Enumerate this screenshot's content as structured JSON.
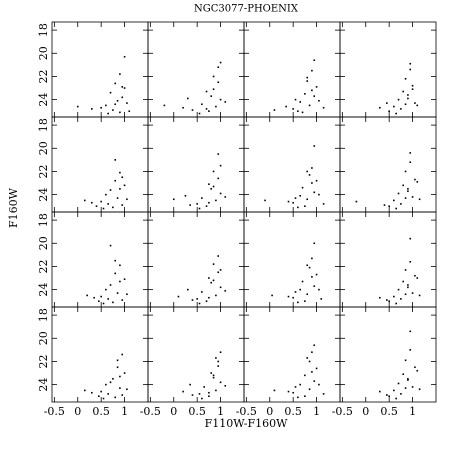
{
  "chart_data": {
    "type": "scatter",
    "title": "NGC3077-PHOENIX",
    "x_label": "F110W-F160W",
    "y_label": "F160W",
    "xlim": [
      -0.55,
      1.5
    ],
    "ylim": [
      25.5,
      17.3
    ],
    "xticks": [
      -0.5,
      0,
      0.5,
      1
    ],
    "yticks": [
      18,
      20,
      22,
      24
    ],
    "color": "#000000",
    "panels": [
      {
        "x": [
          0.9,
          0.8,
          1.0,
          0.7,
          0.95,
          0.85,
          0.6,
          1.05,
          0.75,
          0.9,
          0.5,
          1.1,
          0.3,
          0.8,
          0.0,
          0.95,
          0.65,
          1.0
        ],
        "y": [
          21.8,
          22.6,
          23.0,
          23.4,
          23.8,
          24.1,
          24.5,
          24.3,
          24.9,
          25.1,
          24.7,
          25.0,
          24.8,
          24.4,
          24.6,
          22.9,
          25.2,
          20.3
        ]
      },
      {
        "x": [
          0.85,
          0.95,
          0.7,
          0.8,
          1.0,
          0.6,
          0.9,
          0.4,
          0.75,
          1.1,
          0.2,
          0.85,
          0.55,
          -0.2,
          0.95,
          0.7,
          0.3,
          1.0
        ],
        "y": [
          22.0,
          22.5,
          23.3,
          23.7,
          24.0,
          24.4,
          24.6,
          24.9,
          25.0,
          24.2,
          24.7,
          23.1,
          25.2,
          24.5,
          21.2,
          24.8,
          23.9,
          20.8
        ]
      },
      {
        "x": [
          0.9,
          0.8,
          1.0,
          0.75,
          0.95,
          0.65,
          0.85,
          0.5,
          1.05,
          0.7,
          0.35,
          0.9,
          0.6,
          1.15,
          0.8,
          0.1,
          0.95,
          0.55
        ],
        "y": [
          21.5,
          22.4,
          22.9,
          23.5,
          23.7,
          24.2,
          24.5,
          24.8,
          24.1,
          25.1,
          24.6,
          23.2,
          25.0,
          24.7,
          22.1,
          24.9,
          20.6,
          24.0
        ]
      },
      {
        "x": [
          0.95,
          0.85,
          1.0,
          0.8,
          0.9,
          0.7,
          1.05,
          0.6,
          0.75,
          1.1,
          0.5,
          0.9,
          0.65,
          0.3,
          0.95,
          0.85,
          1.0,
          0.45
        ],
        "y": [
          21.4,
          22.2,
          22.8,
          23.3,
          23.6,
          24.0,
          24.3,
          24.6,
          24.8,
          24.5,
          25.0,
          23.9,
          25.2,
          24.7,
          20.9,
          24.4,
          23.1,
          24.3
        ]
      },
      {
        "x": [
          0.9,
          0.8,
          1.0,
          0.7,
          0.6,
          0.85,
          0.5,
          0.95,
          0.3,
          0.75,
          1.05,
          0.4,
          0.9,
          0.65,
          0.15,
          0.8,
          0.55,
          0.95
        ],
        "y": [
          22.1,
          22.8,
          23.2,
          23.6,
          24.0,
          24.3,
          24.6,
          24.9,
          24.7,
          25.1,
          24.4,
          25.0,
          23.5,
          24.8,
          24.5,
          21.0,
          25.2,
          22.5
        ]
      },
      {
        "x": [
          0.85,
          0.95,
          0.75,
          0.8,
          1.0,
          0.6,
          0.9,
          0.5,
          0.7,
          1.1,
          0.35,
          0.85,
          0.55,
          0.0,
          0.95,
          0.75,
          0.25,
          1.0
        ],
        "y": [
          22.0,
          22.6,
          23.1,
          23.5,
          23.9,
          24.3,
          24.5,
          24.8,
          25.0,
          24.2,
          24.9,
          23.3,
          25.2,
          24.4,
          20.5,
          24.7,
          24.1,
          21.5
        ]
      },
      {
        "x": [
          0.9,
          0.85,
          1.0,
          0.7,
          0.95,
          0.65,
          0.8,
          0.5,
          1.05,
          0.75,
          0.4,
          0.9,
          0.6,
          1.15,
          0.8,
          -0.1,
          0.95,
          0.55
        ],
        "y": [
          21.7,
          22.3,
          22.8,
          23.4,
          23.8,
          24.1,
          24.4,
          24.7,
          24.0,
          25.0,
          24.6,
          23.0,
          25.1,
          24.8,
          22.0,
          24.5,
          19.8,
          24.3
        ]
      },
      {
        "x": [
          0.95,
          0.85,
          1.05,
          0.8,
          0.9,
          0.7,
          1.0,
          0.6,
          0.75,
          1.15,
          0.5,
          0.9,
          0.65,
          -0.2,
          0.95,
          0.85,
          1.1,
          0.4
        ],
        "y": [
          21.2,
          22.0,
          22.7,
          23.2,
          23.5,
          23.9,
          24.2,
          24.5,
          24.8,
          24.4,
          25.0,
          23.7,
          25.2,
          24.6,
          20.4,
          24.3,
          22.9,
          24.9
        ]
      },
      {
        "x": [
          0.9,
          0.8,
          1.0,
          0.7,
          0.6,
          0.85,
          0.5,
          0.95,
          0.35,
          0.75,
          1.05,
          0.45,
          0.9,
          0.65,
          0.2,
          0.8,
          0.55,
          0.7
        ],
        "y": [
          21.9,
          22.6,
          23.1,
          23.6,
          24.0,
          24.3,
          24.6,
          24.9,
          24.7,
          25.1,
          24.4,
          25.0,
          23.3,
          24.8,
          24.5,
          21.5,
          25.2,
          20.2
        ]
      },
      {
        "x": [
          0.85,
          0.95,
          0.75,
          0.8,
          1.0,
          0.6,
          0.9,
          0.5,
          0.7,
          1.1,
          0.4,
          0.85,
          0.55,
          0.1,
          0.95,
          0.75,
          0.3,
          1.0
        ],
        "y": [
          21.8,
          22.5,
          23.0,
          23.4,
          23.8,
          24.2,
          24.5,
          24.8,
          25.0,
          24.1,
          24.9,
          23.2,
          25.2,
          24.6,
          21.1,
          24.7,
          24.0,
          22.3
        ]
      },
      {
        "x": [
          0.9,
          0.85,
          1.0,
          0.7,
          0.95,
          0.65,
          0.8,
          0.5,
          1.05,
          0.75,
          0.4,
          0.9,
          0.6,
          1.1,
          0.8,
          0.05,
          0.95,
          0.55
        ],
        "y": [
          21.3,
          22.1,
          22.7,
          23.3,
          23.7,
          24.0,
          24.4,
          24.7,
          24.0,
          25.0,
          24.6,
          22.9,
          25.1,
          24.8,
          21.9,
          24.5,
          20.0,
          24.2
        ]
      },
      {
        "x": [
          0.95,
          0.85,
          1.05,
          0.8,
          0.9,
          0.7,
          1.0,
          0.6,
          0.75,
          1.15,
          0.5,
          0.9,
          0.65,
          0.3,
          0.95,
          0.85,
          1.1,
          0.45
        ],
        "y": [
          21.6,
          22.3,
          22.8,
          23.3,
          23.6,
          24.0,
          24.3,
          24.6,
          24.8,
          24.5,
          25.0,
          23.8,
          25.2,
          24.7,
          19.6,
          24.4,
          23.0,
          24.9
        ]
      },
      {
        "x": [
          0.95,
          0.85,
          1.0,
          0.75,
          0.6,
          0.9,
          0.5,
          0.95,
          0.3,
          0.8,
          1.05,
          0.45,
          0.9,
          0.65,
          0.15,
          0.85,
          0.55,
          0.7
        ],
        "y": [
          21.4,
          22.5,
          23.0,
          23.5,
          24.0,
          24.3,
          24.6,
          24.9,
          24.7,
          25.1,
          24.4,
          25.0,
          23.3,
          24.8,
          24.5,
          21.9,
          25.2,
          23.8
        ]
      },
      {
        "x": [
          0.9,
          0.95,
          0.8,
          0.85,
          1.0,
          0.65,
          0.9,
          0.55,
          0.75,
          1.1,
          0.4,
          0.85,
          0.6,
          0.2,
          0.95,
          0.75,
          0.35,
          1.0
        ],
        "y": [
          21.7,
          22.4,
          23.0,
          23.4,
          23.8,
          24.2,
          24.5,
          24.8,
          25.0,
          24.1,
          24.9,
          23.2,
          25.2,
          24.6,
          22.0,
          24.7,
          24.0,
          21.2
        ]
      },
      {
        "x": [
          0.9,
          0.85,
          1.0,
          0.75,
          0.95,
          0.65,
          0.85,
          0.5,
          1.05,
          0.75,
          0.4,
          0.9,
          0.6,
          1.15,
          0.8,
          0.1,
          0.95,
          0.55
        ],
        "y": [
          21.2,
          22.0,
          22.6,
          23.2,
          23.7,
          24.0,
          24.4,
          24.7,
          24.0,
          25.0,
          24.6,
          22.9,
          25.1,
          24.8,
          21.7,
          24.5,
          20.6,
          24.2
        ]
      },
      {
        "x": [
          0.95,
          0.85,
          1.05,
          0.8,
          0.9,
          0.7,
          1.0,
          0.6,
          0.75,
          1.15,
          0.5,
          0.9,
          0.65,
          0.3,
          0.95,
          0.85,
          1.1,
          0.45
        ],
        "y": [
          21.0,
          21.9,
          22.5,
          23.1,
          23.5,
          23.9,
          24.2,
          24.5,
          24.8,
          24.4,
          25.0,
          23.6,
          25.2,
          24.6,
          19.4,
          24.3,
          22.8,
          24.9
        ]
      }
    ]
  }
}
